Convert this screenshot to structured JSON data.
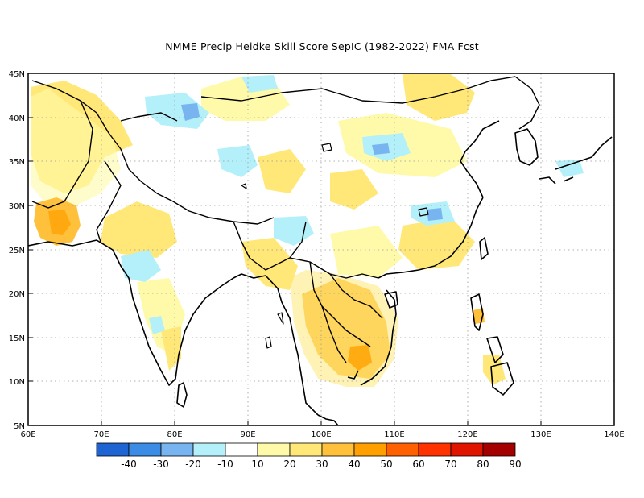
{
  "title": "NMME Precip Heidke Skill Score SepIC (1982-2022) FMA Fcst",
  "map": {
    "lat_labels": [
      "45N",
      "40N",
      "35N",
      "30N",
      "25N",
      "20N",
      "15N",
      "10N",
      "5N"
    ],
    "lon_labels": [
      "60E",
      "70E",
      "80E",
      "90E",
      "100E",
      "110E",
      "120E",
      "130E",
      "140E"
    ],
    "lat_range": [
      5,
      45
    ],
    "lon_range": [
      60,
      140
    ],
    "grid_style": "dotted"
  },
  "colorbar": {
    "labels": [
      "-40",
      "-30",
      "-20",
      "-10",
      "10",
      "20",
      "30",
      "40",
      "50",
      "60",
      "70",
      "80",
      "90"
    ],
    "colors": [
      "#1e64d2",
      "#3c8ce6",
      "#78b4f0",
      "#b4f0fa",
      "#ffffff",
      "#fffaaa",
      "#ffe878",
      "#ffc03c",
      "#ffa000",
      "#ff6000",
      "#ff3200",
      "#e11400",
      "#a50000"
    ]
  },
  "regions": [
    {
      "id": "indochina",
      "level": "30",
      "color": "#ffc03c"
    },
    {
      "id": "pakistan-iran",
      "level": "30",
      "color": "#ffc03c"
    },
    {
      "id": "central-asia",
      "level": "20",
      "color": "#ffe878"
    },
    {
      "id": "tibet-east",
      "level": "20",
      "color": "#ffe878"
    },
    {
      "id": "south-china",
      "level": "20",
      "color": "#ffe878"
    },
    {
      "id": "tibet-west-neg",
      "level": "-10",
      "color": "#b4f0fa"
    },
    {
      "id": "india-neg",
      "level": "-10",
      "color": "#b4f0fa"
    },
    {
      "id": "china-neg",
      "level": "-20",
      "color": "#78b4f0"
    }
  ]
}
